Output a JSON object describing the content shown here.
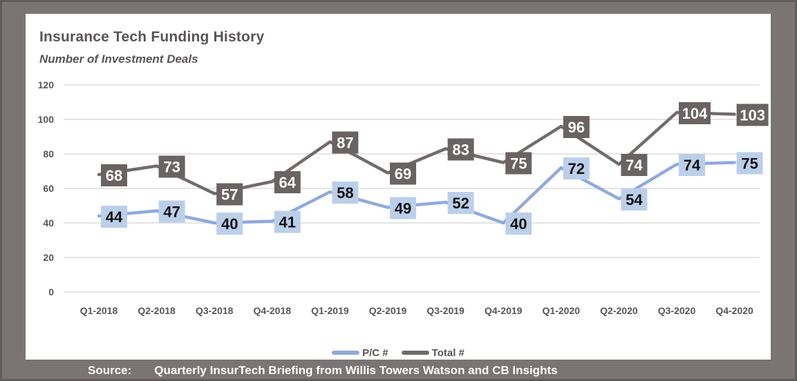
{
  "header": {
    "title": "Insurance Tech Funding History",
    "subtitle": "Number of Investment Deals"
  },
  "chart_data": {
    "type": "line",
    "title": "Insurance Tech Funding History",
    "subtitle": "Number of Investment Deals",
    "categories": [
      "Q1-2018",
      "Q2-2018",
      "Q3-2018",
      "Q4-2018",
      "Q1-2019",
      "Q2-2019",
      "Q3-2019",
      "Q4-2019",
      "Q1-2020",
      "Q2-2020",
      "Q3-2020",
      "Q4-2020"
    ],
    "series": [
      {
        "name": "P/C #",
        "values": [
          44,
          47,
          40,
          41,
          58,
          49,
          52,
          40,
          72,
          54,
          74,
          75
        ],
        "color": "#8faadc",
        "label_bg": "#bccfea",
        "label_text_color": "#111111"
      },
      {
        "name": "Total #",
        "values": [
          68,
          73,
          57,
          64,
          87,
          69,
          83,
          75,
          96,
          74,
          104,
          103
        ],
        "color": "#716b6b",
        "label_bg": "#696363",
        "label_text_color": "#ffffff"
      }
    ],
    "ylim": [
      0,
      120
    ],
    "yticks": [
      0,
      20,
      40,
      60,
      80,
      100,
      120
    ],
    "grid": "horizontal-only",
    "legend_position": "bottom",
    "data_labels": true
  },
  "legend": {
    "items": [
      {
        "label": "P/C #"
      },
      {
        "label": "Total #"
      }
    ]
  },
  "source": {
    "label": "Source:",
    "text": "Quarterly InsurTech Briefing from Willis Towers Watson and CB Insights"
  },
  "colors": {
    "frame": "#7a7474",
    "panel": "#ffffff",
    "text": "#595457",
    "gridline": "#dcdcdc",
    "pc_line": "#8faadc",
    "pc_label_bg": "#bccfea",
    "total_line": "#716b6b",
    "total_label_bg": "#696363",
    "source_text": "#ffffff"
  }
}
